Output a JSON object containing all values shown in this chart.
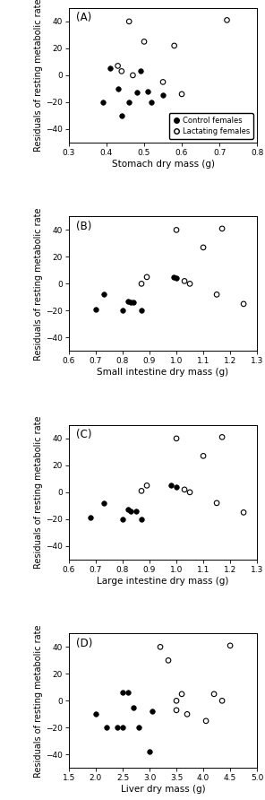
{
  "panels": [
    {
      "label": "(A)",
      "xlabel": "Stomach dry mass (g)",
      "xlim": [
        0.3,
        0.8
      ],
      "xticks": [
        0.3,
        0.4,
        0.5,
        0.6,
        0.7,
        0.8
      ],
      "control_x": [
        0.39,
        0.41,
        0.43,
        0.44,
        0.46,
        0.48,
        0.49,
        0.51,
        0.52,
        0.55
      ],
      "control_y": [
        -20,
        5,
        -10,
        -30,
        -20,
        -13,
        3,
        -12,
        -20,
        -15
      ],
      "lactating_x": [
        0.43,
        0.44,
        0.46,
        0.47,
        0.5,
        0.55,
        0.58,
        0.6,
        0.72
      ],
      "lactating_y": [
        7,
        3,
        40,
        0,
        25,
        -5,
        22,
        -14,
        41
      ],
      "show_legend": true
    },
    {
      "label": "(B)",
      "xlabel": "Small intestine dry mass (g)",
      "xlim": [
        0.6,
        1.3
      ],
      "xticks": [
        0.6,
        0.7,
        0.8,
        0.9,
        1.0,
        1.1,
        1.2,
        1.3
      ],
      "control_x": [
        0.7,
        0.73,
        0.8,
        0.82,
        0.83,
        0.84,
        0.87,
        0.99,
        1.0
      ],
      "control_y": [
        -19,
        -8,
        -20,
        -13,
        -14,
        -14,
        -20,
        5,
        4
      ],
      "lactating_x": [
        0.87,
        0.89,
        1.0,
        1.03,
        1.05,
        1.1,
        1.15,
        1.17,
        1.25
      ],
      "lactating_y": [
        0,
        5,
        40,
        2,
        0,
        27,
        -8,
        41,
        -15
      ],
      "show_legend": false
    },
    {
      "label": "(C)",
      "xlabel": "Large intestine dry mass (g)",
      "xlim": [
        0.6,
        1.3
      ],
      "xticks": [
        0.6,
        0.7,
        0.8,
        0.9,
        1.0,
        1.1,
        1.2,
        1.3
      ],
      "control_x": [
        0.68,
        0.73,
        0.8,
        0.82,
        0.83,
        0.85,
        0.87,
        0.98,
        1.0
      ],
      "control_y": [
        -19,
        -8,
        -20,
        -13,
        -14,
        -14,
        -20,
        5,
        4
      ],
      "lactating_x": [
        0.87,
        0.89,
        1.0,
        1.03,
        1.05,
        1.1,
        1.15,
        1.17,
        1.25
      ],
      "lactating_y": [
        1,
        5,
        40,
        2,
        0,
        27,
        -8,
        41,
        -15
      ],
      "show_legend": false
    },
    {
      "label": "(D)",
      "xlabel": "Liver dry mass (g)",
      "xlim": [
        1.5,
        5.0
      ],
      "xticks": [
        1.5,
        2.0,
        2.5,
        3.0,
        3.5,
        4.0,
        4.5,
        5.0
      ],
      "control_x": [
        2.0,
        2.2,
        2.4,
        2.5,
        2.5,
        2.6,
        2.7,
        2.8,
        3.0,
        3.05
      ],
      "control_y": [
        -10,
        -20,
        -20,
        6,
        -20,
        6,
        -5,
        -20,
        -38,
        -8
      ],
      "lactating_x": [
        3.2,
        3.35,
        3.5,
        3.5,
        3.6,
        3.7,
        4.05,
        4.2,
        4.35,
        4.5
      ],
      "lactating_y": [
        40,
        30,
        0,
        -7,
        5,
        -10,
        -15,
        5,
        0,
        41
      ],
      "show_legend": false
    }
  ],
  "ylabel": "Residuals of resting metabolic rate",
  "ylim": [
    -50,
    50
  ],
  "yticks": [
    -40,
    -20,
    0,
    20,
    40
  ],
  "control_color": "#000000",
  "lactating_color": "#000000",
  "marker_size": 16,
  "legend_control": "Control females",
  "legend_lactating": "Lactating females",
  "fig_width": 2.96,
  "fig_height": 8.92,
  "dpi": 100
}
